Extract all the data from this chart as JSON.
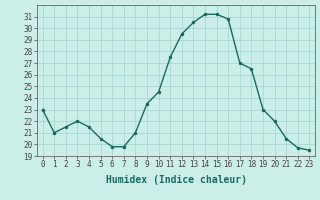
{
  "x": [
    0,
    1,
    2,
    3,
    4,
    5,
    6,
    7,
    8,
    9,
    10,
    11,
    12,
    13,
    14,
    15,
    16,
    17,
    18,
    19,
    20,
    21,
    22,
    23
  ],
  "y": [
    23.0,
    21.0,
    21.5,
    22.0,
    21.5,
    20.5,
    19.8,
    19.8,
    21.0,
    23.5,
    24.5,
    27.5,
    29.5,
    30.5,
    31.2,
    31.2,
    30.8,
    27.0,
    26.5,
    23.0,
    22.0,
    20.5,
    19.7,
    19.5
  ],
  "line_color": "#1a6b5e",
  "marker": ".",
  "marker_size": 3,
  "bg_color": "#cceee8",
  "grid_color": "#9dd4cc",
  "xlabel": "Humidex (Indice chaleur)",
  "ylim": [
    19,
    32
  ],
  "xlim": [
    -0.5,
    23.5
  ],
  "yticks": [
    19,
    20,
    21,
    22,
    23,
    24,
    25,
    26,
    27,
    28,
    29,
    30,
    31
  ],
  "xticks": [
    0,
    1,
    2,
    3,
    4,
    5,
    6,
    7,
    8,
    9,
    10,
    11,
    12,
    13,
    14,
    15,
    16,
    17,
    18,
    19,
    20,
    21,
    22,
    23
  ],
  "xtick_labels": [
    "0",
    "1",
    "2",
    "3",
    "4",
    "5",
    "6",
    "7",
    "8",
    "9",
    "10",
    "11",
    "12",
    "13",
    "14",
    "15",
    "16",
    "17",
    "18",
    "19",
    "20",
    "21",
    "22",
    "23"
  ],
  "tick_fontsize": 5.5,
  "xlabel_fontsize": 7,
  "line_width": 1.0
}
